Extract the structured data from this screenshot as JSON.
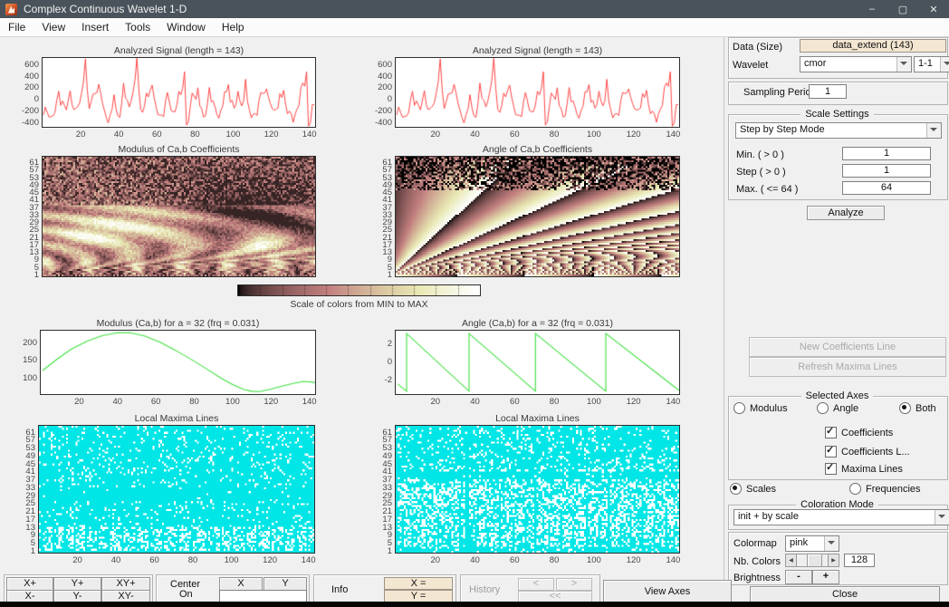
{
  "window": {
    "title": "Complex Continuous Wavelet 1-D",
    "minimize": "–",
    "maximize": "▢",
    "close": "✕"
  },
  "menu": {
    "items": [
      "File",
      "View",
      "Insert",
      "Tools",
      "Window",
      "Help"
    ]
  },
  "plots": {
    "signal_left": {
      "title": "Analyzed Signal  (length = 143)",
      "yticks": [
        600,
        400,
        200,
        0,
        -200,
        -400
      ],
      "xticks": [
        20,
        40,
        60,
        80,
        100,
        120,
        140
      ],
      "line_color": "#ff4545",
      "keypoints": [
        [
          2,
          -120
        ],
        [
          5,
          -280
        ],
        [
          9,
          150
        ],
        [
          12,
          -90
        ],
        [
          15,
          160
        ],
        [
          18,
          -140
        ],
        [
          21,
          120
        ],
        [
          23,
          705
        ],
        [
          25,
          -150
        ],
        [
          27,
          100
        ],
        [
          30,
          270
        ],
        [
          33,
          -180
        ],
        [
          36,
          -250
        ],
        [
          38,
          90
        ],
        [
          41,
          -300
        ],
        [
          43,
          290
        ],
        [
          46,
          -120
        ],
        [
          48,
          140
        ],
        [
          50,
          715
        ],
        [
          52,
          -160
        ],
        [
          55,
          120
        ],
        [
          58,
          255
        ],
        [
          60,
          -100
        ],
        [
          63,
          -260
        ],
        [
          66,
          130
        ],
        [
          68,
          -180
        ],
        [
          70,
          -200
        ],
        [
          72,
          150
        ],
        [
          74,
          200
        ],
        [
          75,
          485
        ],
        [
          76,
          -430
        ],
        [
          79,
          120
        ],
        [
          82,
          210
        ],
        [
          84,
          -150
        ],
        [
          86,
          -270
        ],
        [
          88,
          215
        ],
        [
          91,
          -120
        ],
        [
          94,
          -180
        ],
        [
          96,
          140
        ],
        [
          98,
          265
        ],
        [
          101,
          -140
        ],
        [
          103,
          150
        ],
        [
          105,
          -100
        ],
        [
          107,
          355
        ],
        [
          109,
          -170
        ],
        [
          112,
          -230
        ],
        [
          115,
          130
        ],
        [
          118,
          190
        ],
        [
          121,
          -150
        ],
        [
          123,
          -160
        ],
        [
          125,
          110
        ],
        [
          127,
          165
        ],
        [
          130,
          -190
        ],
        [
          133,
          -240
        ],
        [
          136,
          210
        ],
        [
          139,
          485
        ],
        [
          140,
          -450
        ],
        [
          142,
          -80
        ]
      ]
    },
    "signal_right": {
      "title": "Analyzed Signal  (length = 143)",
      "yticks": [
        600,
        400,
        200,
        0,
        -200,
        -400
      ],
      "xticks": [
        20,
        40,
        60,
        80,
        100,
        120,
        140
      ],
      "line_color": "#ff4545"
    },
    "modulus_coeffs": {
      "title": "Modulus of Ca,b Coefficients",
      "yticks": [
        61,
        57,
        53,
        49,
        45,
        41,
        37,
        33,
        29,
        25,
        21,
        17,
        13,
        9,
        5,
        1
      ]
    },
    "angle_coeffs": {
      "title": "Angle of Ca,b Coefficients",
      "yticks": [
        61,
        57,
        53,
        49,
        45,
        41,
        37,
        33,
        29,
        25,
        21,
        17,
        13,
        9,
        5,
        1
      ]
    },
    "colorbar": {
      "label": "Scale of colors from MIN to MAX"
    },
    "modulus_line": {
      "title": "Modulus (Ca,b) for a = 32  (frq =  0.031)",
      "yticks": [
        200,
        150,
        100
      ],
      "xticks": [
        20,
        40,
        60,
        80,
        100,
        120,
        140
      ],
      "line_color": "#3fe03f",
      "ylim": [
        55,
        235
      ],
      "path": [
        [
          1,
          122
        ],
        [
          8,
          152
        ],
        [
          16,
          183
        ],
        [
          24,
          205
        ],
        [
          32,
          221
        ],
        [
          40,
          229
        ],
        [
          46,
          230
        ],
        [
          54,
          220
        ],
        [
          62,
          203
        ],
        [
          70,
          180
        ],
        [
          78,
          155
        ],
        [
          86,
          128
        ],
        [
          94,
          100
        ],
        [
          100,
          82
        ],
        [
          106,
          68
        ],
        [
          110,
          63
        ],
        [
          114,
          62
        ],
        [
          120,
          69
        ],
        [
          126,
          78
        ],
        [
          132,
          86
        ],
        [
          137,
          91
        ],
        [
          143,
          88
        ]
      ]
    },
    "angle_line": {
      "title": "Angle (Ca,b) for a = 32  (frq =  0.031)",
      "yticks": [
        2,
        0,
        -2
      ],
      "xticks": [
        20,
        40,
        60,
        80,
        100,
        120,
        140
      ],
      "line_color": "#3fe03f",
      "ylim": [
        -3.45,
        3.45
      ],
      "path": [
        [
          1,
          -2.35
        ],
        [
          5.5,
          -3.14
        ],
        [
          5.5,
          3.14
        ],
        [
          37,
          -3.14
        ],
        [
          37,
          3.14
        ],
        [
          70.5,
          -3.14
        ],
        [
          70.5,
          3.14
        ],
        [
          106,
          -3.14
        ],
        [
          106,
          3.14
        ],
        [
          143,
          -3.05
        ]
      ]
    },
    "maxima_left": {
      "title": "Local Maxima Lines",
      "yticks": [
        61,
        57,
        53,
        49,
        45,
        41,
        37,
        33,
        29,
        25,
        21,
        17,
        13,
        9,
        5,
        1
      ],
      "xticks": [
        20,
        40,
        60,
        80,
        100,
        120,
        140
      ],
      "dot_color": "#00e6e6"
    },
    "maxima_right": {
      "title": "Local Maxima Lines",
      "yticks": [
        61,
        57,
        53,
        49,
        45,
        41,
        37,
        33,
        29,
        25,
        21,
        17,
        13,
        9,
        5,
        1
      ],
      "xticks": [
        20,
        40,
        60,
        80,
        100,
        120,
        140
      ],
      "dot_color": "#00e6e6"
    }
  },
  "panel": {
    "data_label": "Data  (Size)",
    "data_value": "data_extend  (143)",
    "wavelet_label": "Wavelet",
    "wavelet_family": "cmor",
    "wavelet_number": "1-1",
    "sampling_label": "Sampling Period",
    "sampling_value": "1",
    "scale_settings": {
      "legend": "Scale Settings",
      "mode": "Step by Step Mode",
      "rows": [
        {
          "label": "Min.  ( > 0 )",
          "value": "1"
        },
        {
          "label": "Step ( > 0 )",
          "value": "1"
        },
        {
          "label": "Max.  ( <= 64 )",
          "value": "64"
        }
      ]
    },
    "analyze_label": "Analyze",
    "new_coefficients_label": "New Coefficients Line",
    "refresh_maxima_label": "Refresh Maxima Lines",
    "selected_axes": {
      "legend": "Selected Axes",
      "modulus": "Modulus",
      "angle": "Angle",
      "both": "Both",
      "selected": "Both",
      "checks": [
        {
          "label": "Coefficients",
          "checked": true
        },
        {
          "label": "Coefficients L...",
          "checked": true
        },
        {
          "label": "Maxima Lines",
          "checked": true
        }
      ]
    },
    "scales_label": "Scales",
    "frequencies_label": "Frequencies",
    "coloration": {
      "legend": "Coloration Mode",
      "value": "init + by scale"
    },
    "colormap_label": "Colormap",
    "colormap_value": "pink",
    "nb_colors_label": "Nb. Colors",
    "nb_colors_value": "128",
    "brightness_label": "Brightness",
    "minus": "-",
    "plus": "+",
    "close_label": "Close"
  },
  "toolbar": {
    "zoom": [
      "X+",
      "Y+",
      "XY+",
      "X-",
      "Y-",
      "XY-"
    ],
    "center_line1": "Center",
    "center_line2": "On",
    "x_button": "X",
    "y_button": "Y",
    "info_label": "Info",
    "x_eq": "X =",
    "y_eq": "Y =",
    "history_label": "History",
    "hist_prev": "<",
    "hist_next": ">",
    "hist_all": "<<",
    "view_axes_label": "View Axes"
  }
}
